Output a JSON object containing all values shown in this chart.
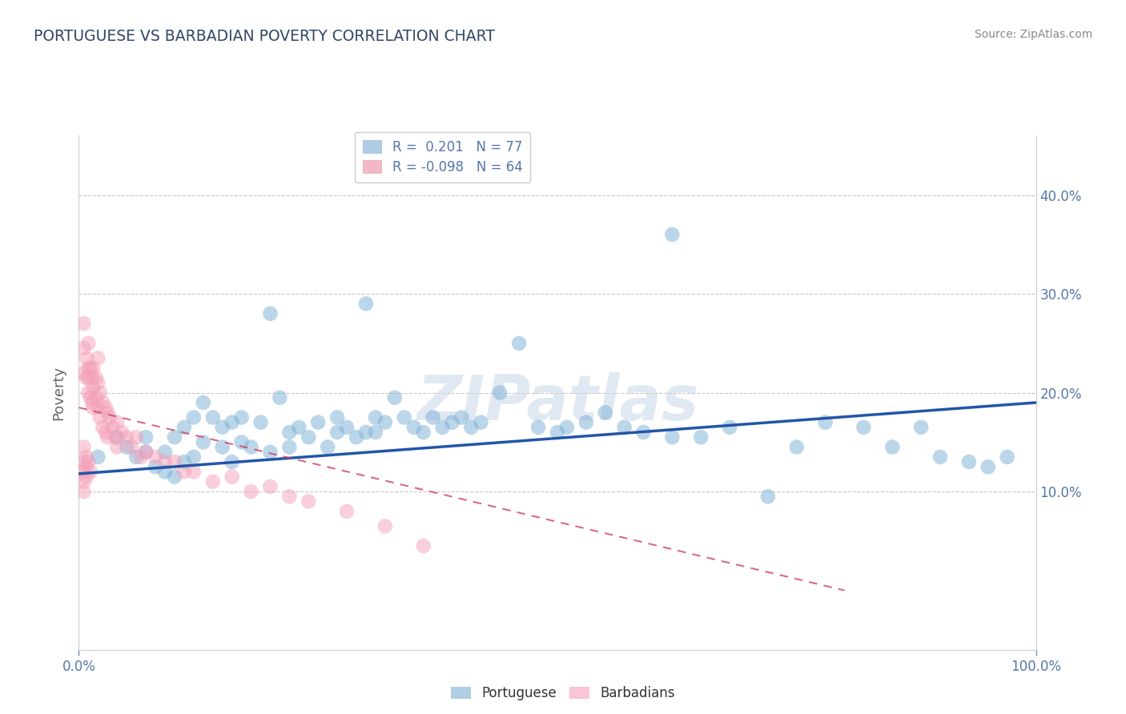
{
  "title": "PORTUGUESE VS BARBADIAN POVERTY CORRELATION CHART",
  "source": "Source: ZipAtlas.com",
  "ylabel": "Poverty",
  "right_yticks": [
    "10.0%",
    "20.0%",
    "30.0%",
    "40.0%"
  ],
  "right_ytick_values": [
    0.1,
    0.2,
    0.3,
    0.4
  ],
  "xlim": [
    0.0,
    1.0
  ],
  "ylim": [
    -0.06,
    0.46
  ],
  "legend_entries": [
    {
      "label": "R =  0.201   N = 77",
      "color": "#a8c4e0"
    },
    {
      "label": "R = -0.098   N = 64",
      "color": "#f0b0c0"
    }
  ],
  "blue_color": "#7bafd4",
  "pink_color": "#f4a0b8",
  "blue_scatter_x": [
    0.02,
    0.04,
    0.05,
    0.06,
    0.07,
    0.07,
    0.08,
    0.09,
    0.09,
    0.1,
    0.1,
    0.11,
    0.11,
    0.12,
    0.12,
    0.13,
    0.13,
    0.14,
    0.15,
    0.15,
    0.16,
    0.16,
    0.17,
    0.17,
    0.18,
    0.19,
    0.2,
    0.21,
    0.22,
    0.22,
    0.23,
    0.24,
    0.25,
    0.26,
    0.27,
    0.27,
    0.28,
    0.29,
    0.3,
    0.31,
    0.31,
    0.32,
    0.33,
    0.34,
    0.35,
    0.36,
    0.37,
    0.38,
    0.39,
    0.4,
    0.41,
    0.42,
    0.44,
    0.46,
    0.48,
    0.5,
    0.51,
    0.53,
    0.55,
    0.57,
    0.59,
    0.62,
    0.65,
    0.68,
    0.72,
    0.75,
    0.78,
    0.82,
    0.85,
    0.88,
    0.9,
    0.93,
    0.95,
    0.97,
    0.62,
    0.3,
    0.2
  ],
  "blue_scatter_y": [
    0.135,
    0.155,
    0.145,
    0.135,
    0.14,
    0.155,
    0.125,
    0.12,
    0.14,
    0.115,
    0.155,
    0.13,
    0.165,
    0.175,
    0.135,
    0.15,
    0.19,
    0.175,
    0.165,
    0.145,
    0.17,
    0.13,
    0.175,
    0.15,
    0.145,
    0.17,
    0.14,
    0.195,
    0.16,
    0.145,
    0.165,
    0.155,
    0.17,
    0.145,
    0.175,
    0.16,
    0.165,
    0.155,
    0.16,
    0.175,
    0.16,
    0.17,
    0.195,
    0.175,
    0.165,
    0.16,
    0.175,
    0.165,
    0.17,
    0.175,
    0.165,
    0.17,
    0.2,
    0.25,
    0.165,
    0.16,
    0.165,
    0.17,
    0.18,
    0.165,
    0.16,
    0.155,
    0.155,
    0.165,
    0.095,
    0.145,
    0.17,
    0.165,
    0.145,
    0.165,
    0.135,
    0.13,
    0.125,
    0.135,
    0.36,
    0.29,
    0.28
  ],
  "pink_scatter_x": [
    0.005,
    0.005,
    0.005,
    0.008,
    0.008,
    0.01,
    0.01,
    0.01,
    0.01,
    0.012,
    0.012,
    0.014,
    0.014,
    0.015,
    0.015,
    0.015,
    0.018,
    0.018,
    0.02,
    0.02,
    0.02,
    0.022,
    0.022,
    0.025,
    0.025,
    0.028,
    0.028,
    0.03,
    0.03,
    0.032,
    0.035,
    0.038,
    0.04,
    0.04,
    0.045,
    0.05,
    0.055,
    0.06,
    0.065,
    0.07,
    0.08,
    0.09,
    0.1,
    0.11,
    0.12,
    0.14,
    0.16,
    0.18,
    0.2,
    0.22,
    0.24,
    0.28,
    0.32,
    0.36,
    0.005,
    0.005,
    0.005,
    0.005,
    0.005,
    0.008,
    0.008,
    0.008,
    0.01,
    0.012
  ],
  "pink_scatter_y": [
    0.27,
    0.245,
    0.22,
    0.235,
    0.215,
    0.25,
    0.225,
    0.215,
    0.2,
    0.225,
    0.195,
    0.215,
    0.19,
    0.225,
    0.205,
    0.185,
    0.215,
    0.195,
    0.235,
    0.21,
    0.185,
    0.2,
    0.175,
    0.19,
    0.165,
    0.185,
    0.16,
    0.18,
    0.155,
    0.175,
    0.165,
    0.155,
    0.17,
    0.145,
    0.16,
    0.155,
    0.145,
    0.155,
    0.135,
    0.14,
    0.135,
    0.13,
    0.13,
    0.12,
    0.12,
    0.11,
    0.115,
    0.1,
    0.105,
    0.095,
    0.09,
    0.08,
    0.065,
    0.045,
    0.145,
    0.13,
    0.12,
    0.11,
    0.1,
    0.135,
    0.125,
    0.115,
    0.13,
    0.12
  ],
  "blue_trend_x": [
    0.0,
    1.0
  ],
  "blue_trend_y": [
    0.118,
    0.19
  ],
  "pink_trend_x": [
    0.0,
    0.8
  ],
  "pink_trend_y": [
    0.185,
    0.0
  ],
  "watermark": "ZIPatlas",
  "background_color": "#ffffff",
  "grid_color": "#c8c8c8",
  "title_color": "#334466",
  "source_color": "#888888",
  "axis_color": "#5577aa",
  "ylabel_color": "#666666"
}
